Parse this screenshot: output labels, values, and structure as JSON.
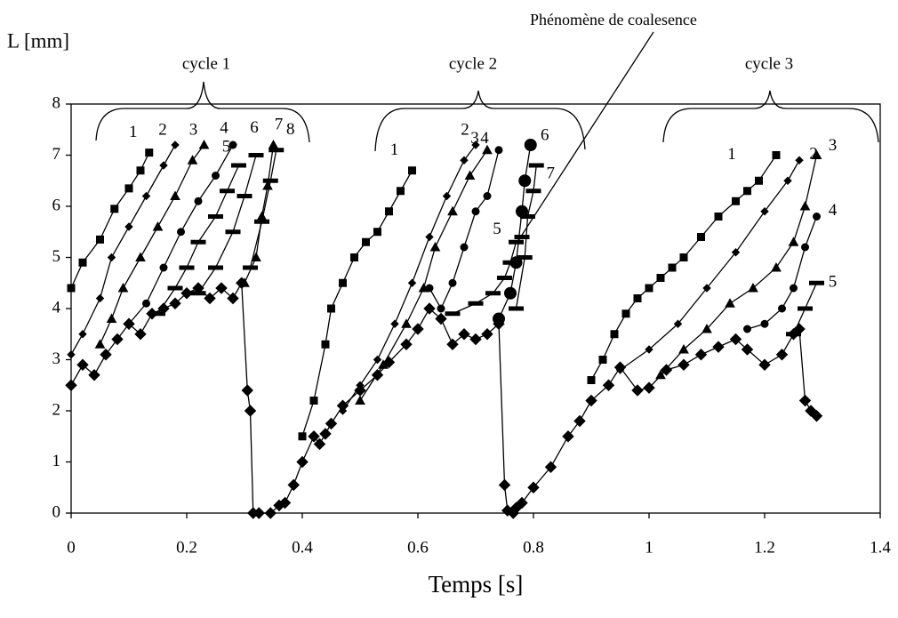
{
  "chart_data": {
    "type": "line",
    "ylabel": "L [mm]",
    "xlabel": "Temps [s]",
    "annotations": [
      "Phénomène de coalesence",
      "cycle 1",
      "cycle 2",
      "cycle 3"
    ],
    "xlim": [
      0,
      1.4
    ],
    "xticks": [
      0,
      0.2,
      0.4,
      0.6,
      0.8,
      1,
      1.2,
      1.4
    ],
    "ylim": [
      0,
      8
    ],
    "yticks": [
      0,
      1,
      2,
      3,
      4,
      5,
      6,
      7,
      8
    ],
    "grid": false,
    "series": [
      {
        "marker": "bigdiamond",
        "color": "#000000",
        "x": [
          0,
          0.02,
          0.04,
          0.06,
          0.08,
          0.1,
          0.12,
          0.14,
          0.16,
          0.18,
          0.2,
          0.22,
          0.24,
          0.26,
          0.28,
          0.295,
          0.305,
          0.31,
          0.315,
          0.325,
          0.345,
          0.36,
          0.37,
          0.385,
          0.4,
          0.42,
          0.43,
          0.44,
          0.45,
          0.47,
          0.5,
          0.53,
          0.55,
          0.58,
          0.6,
          0.62,
          0.64,
          0.66,
          0.68,
          0.7,
          0.72,
          0.74,
          0.75,
          0.755,
          0.765,
          0.77,
          0.78,
          0.8,
          0.83,
          0.86,
          0.88,
          0.9,
          0.93,
          0.95,
          0.98,
          1.0,
          1.03,
          1.06,
          1.09,
          1.12,
          1.15,
          1.17,
          1.2,
          1.23,
          1.25,
          1.26,
          1.27,
          1.28,
          1.29
        ],
        "values": [
          2.5,
          2.9,
          2.7,
          3.1,
          3.4,
          3.7,
          3.5,
          3.9,
          4.0,
          4.1,
          4.3,
          4.4,
          4.2,
          4.4,
          4.2,
          4.5,
          2.4,
          2.0,
          0,
          0,
          0,
          0.15,
          0.2,
          0.55,
          1.0,
          1.5,
          1.35,
          1.55,
          1.75,
          2.1,
          2.4,
          2.7,
          2.95,
          3.3,
          3.6,
          4.0,
          3.8,
          3.3,
          3.5,
          3.4,
          3.5,
          3.7,
          0.55,
          0.05,
          0,
          0.1,
          0.2,
          0.5,
          0.9,
          1.5,
          1.8,
          2.2,
          2.5,
          2.85,
          2.4,
          2.45,
          2.8,
          2.9,
          3.1,
          3.25,
          3.4,
          3.2,
          2.9,
          3.1,
          3.5,
          3.6,
          2.2,
          2.0,
          1.9
        ]
      },
      {
        "name": "1",
        "marker": "square",
        "color": "#000000",
        "x": [
          0,
          0.02,
          0.05,
          0.075,
          0.1,
          0.12,
          0.135
        ],
        "values": [
          4.4,
          4.9,
          5.35,
          5.95,
          6.35,
          6.7,
          7.05
        ]
      },
      {
        "name": "2",
        "marker": "diamond",
        "color": "#000000",
        "x": [
          0,
          0.02,
          0.05,
          0.07,
          0.1,
          0.13,
          0.16,
          0.18
        ],
        "values": [
          3.1,
          3.5,
          4.2,
          5.0,
          5.6,
          6.2,
          6.8,
          7.2
        ]
      },
      {
        "name": "3",
        "marker": "triangle",
        "color": "#000000",
        "x": [
          0.05,
          0.07,
          0.09,
          0.12,
          0.15,
          0.18,
          0.21,
          0.23
        ],
        "values": [
          3.3,
          3.8,
          4.4,
          5.0,
          5.6,
          6.2,
          6.9,
          7.2
        ]
      },
      {
        "name": "4",
        "marker": "circle",
        "color": "#000000",
        "x": [
          0.1,
          0.13,
          0.16,
          0.19,
          0.22,
          0.25,
          0.28
        ],
        "values": [
          3.7,
          4.1,
          4.8,
          5.5,
          6.1,
          6.6,
          7.2
        ]
      },
      {
        "name": "5",
        "marker": "dash",
        "color": "#000000",
        "x": [
          0.15,
          0.18,
          0.2,
          0.22,
          0.25,
          0.27,
          0.29
        ],
        "values": [
          3.9,
          4.4,
          4.8,
          5.3,
          5.8,
          6.3,
          6.8
        ]
      },
      {
        "name": "6",
        "marker": "dash",
        "color": "#000000",
        "x": [
          0.22,
          0.25,
          0.28,
          0.3,
          0.32
        ],
        "values": [
          4.3,
          4.8,
          5.5,
          6.2,
          7.0
        ]
      },
      {
        "name": "7",
        "marker": "triangle",
        "color": "#000000",
        "x": [
          0.3,
          0.32,
          0.33,
          0.34,
          0.35
        ],
        "values": [
          4.5,
          5.0,
          5.8,
          6.4,
          7.2
        ]
      },
      {
        "name": "8",
        "marker": "dash",
        "color": "#000000",
        "x": [
          0.31,
          0.33,
          0.345,
          0.355
        ],
        "values": [
          4.8,
          5.7,
          6.5,
          7.1
        ]
      },
      {
        "name": "1",
        "marker": "square",
        "color": "#000000",
        "x": [
          0.4,
          0.42,
          0.44,
          0.45,
          0.47,
          0.49,
          0.51,
          0.53,
          0.55,
          0.57,
          0.59
        ],
        "values": [
          1.5,
          2.2,
          3.3,
          4.0,
          4.5,
          5.0,
          5.3,
          5.5,
          5.9,
          6.3,
          6.7
        ]
      },
      {
        "name": "2",
        "marker": "diamond",
        "color": "#000000",
        "x": [
          0.47,
          0.5,
          0.53,
          0.56,
          0.59,
          0.62,
          0.65,
          0.68,
          0.7
        ],
        "values": [
          2.0,
          2.5,
          3.0,
          3.7,
          4.5,
          5.4,
          6.2,
          6.9,
          7.2
        ]
      },
      {
        "name": "3",
        "marker": "triangle",
        "color": "#000000",
        "x": [
          0.5,
          0.54,
          0.58,
          0.61,
          0.63,
          0.66,
          0.69,
          0.72
        ],
        "values": [
          2.2,
          2.9,
          3.7,
          4.4,
          5.2,
          5.9,
          6.6,
          7.1
        ]
      },
      {
        "name": "4",
        "marker": "circle",
        "color": "#000000",
        "x": [
          0.62,
          0.64,
          0.66,
          0.68,
          0.7,
          0.72,
          0.74
        ],
        "values": [
          4.4,
          4.0,
          4.5,
          5.2,
          5.9,
          6.2,
          7.1
        ]
      },
      {
        "name": "5",
        "marker": "dash",
        "color": "#000000",
        "x": [
          0.66,
          0.7,
          0.73,
          0.75,
          0.76,
          0.77,
          0.78
        ],
        "values": [
          3.9,
          4.1,
          4.3,
          4.6,
          4.9,
          5.3,
          5.4
        ]
      },
      {
        "name": "6",
        "marker": "bigcircle",
        "color": "#000000",
        "x": [
          0.74,
          0.76,
          0.77,
          0.78,
          0.785,
          0.795
        ],
        "values": [
          3.8,
          4.3,
          4.9,
          5.9,
          6.5,
          7.2
        ]
      },
      {
        "name": "7",
        "marker": "dash",
        "color": "#000000",
        "x": [
          0.77,
          0.785,
          0.79,
          0.8,
          0.805
        ],
        "values": [
          4.0,
          5.0,
          5.8,
          6.3,
          6.8
        ]
      },
      {
        "name": "1",
        "marker": "square",
        "color": "#000000",
        "x": [
          0.9,
          0.92,
          0.94,
          0.96,
          0.98,
          1.0,
          1.02,
          1.04,
          1.06,
          1.09,
          1.12,
          1.15,
          1.17,
          1.19,
          1.22
        ],
        "values": [
          2.6,
          3.0,
          3.5,
          3.9,
          4.2,
          4.4,
          4.6,
          4.8,
          5.0,
          5.4,
          5.8,
          6.1,
          6.3,
          6.5,
          7.0
        ]
      },
      {
        "name": "2",
        "marker": "diamond",
        "color": "#000000",
        "x": [
          0.95,
          1.0,
          1.05,
          1.1,
          1.15,
          1.2,
          1.24,
          1.26
        ],
        "values": [
          2.8,
          3.2,
          3.7,
          4.4,
          5.1,
          5.9,
          6.5,
          6.9
        ]
      },
      {
        "name": "3",
        "marker": "triangle",
        "color": "#000000",
        "x": [
          1.02,
          1.06,
          1.1,
          1.14,
          1.18,
          1.22,
          1.25,
          1.27,
          1.29
        ],
        "values": [
          2.7,
          3.2,
          3.6,
          4.1,
          4.4,
          4.8,
          5.3,
          6.0,
          7.0
        ]
      },
      {
        "name": "4",
        "marker": "circle",
        "color": "#000000",
        "x": [
          1.17,
          1.2,
          1.23,
          1.25,
          1.27,
          1.29
        ],
        "values": [
          3.6,
          3.7,
          4.0,
          4.4,
          5.2,
          5.8
        ]
      },
      {
        "name": "5",
        "marker": "dash",
        "color": "#000000",
        "x": [
          1.25,
          1.27,
          1.29
        ],
        "values": [
          3.5,
          4.0,
          4.5
        ]
      }
    ]
  }
}
